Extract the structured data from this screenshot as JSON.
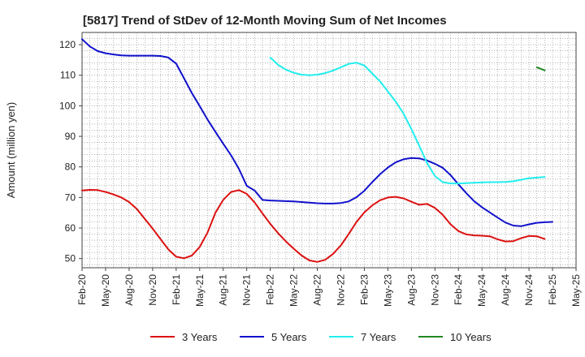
{
  "chart_data": {
    "type": "line",
    "title": "[5817]  Trend of StDev of 12-Month Moving Sum of Net Incomes",
    "ylabel": "Amount (million yen)",
    "xlabel": "",
    "ylim": [
      47,
      124
    ],
    "yticks": [
      50,
      60,
      70,
      80,
      90,
      100,
      110,
      120
    ],
    "x_tick_labels": [
      "Feb-20",
      "May-20",
      "Aug-20",
      "Nov-20",
      "Feb-21",
      "May-21",
      "Aug-21",
      "Nov-21",
      "Feb-22",
      "May-22",
      "Aug-22",
      "Nov-22",
      "Feb-23",
      "May-23",
      "Aug-23",
      "Nov-23",
      "Feb-24",
      "May-24",
      "Aug-24",
      "Nov-24",
      "Feb-25",
      "May-25"
    ],
    "grid": true,
    "legend_position": "bottom",
    "series": [
      {
        "name": "3 Years",
        "color": "#dd1111",
        "start_index": 0,
        "values": [
          72.3,
          72.5,
          72.4,
          71.8,
          71.0,
          70.0,
          68.5,
          66.2,
          63.0,
          59.8,
          56.4,
          53.0,
          50.6,
          50.1,
          51.0,
          53.8,
          58.5,
          65.0,
          69.2,
          71.8,
          72.4,
          71.2,
          68.4,
          64.8,
          61.4,
          58.3,
          55.6,
          53.2,
          51.0,
          49.4,
          48.9,
          49.6,
          51.5,
          54.3,
          58.0,
          62.0,
          65.1,
          67.4,
          69.1,
          70.0,
          70.2,
          69.7,
          68.6,
          67.6,
          67.9,
          66.6,
          64.3,
          61.2,
          59.0,
          57.9,
          57.6,
          57.5,
          57.3,
          56.3,
          55.6,
          55.7,
          56.7,
          57.4,
          57.3,
          56.4
        ]
      },
      {
        "name": "5 Years",
        "color": "#1111cc",
        "start_index": 0,
        "values": [
          121.8,
          119.4,
          117.9,
          117.2,
          116.8,
          116.5,
          116.4,
          116.4,
          116.4,
          116.4,
          116.3,
          115.8,
          113.8,
          109.0,
          104.2,
          99.9,
          95.5,
          91.5,
          87.6,
          83.8,
          79.4,
          73.8,
          72.3,
          69.2,
          69.0,
          68.9,
          68.8,
          68.7,
          68.5,
          68.3,
          68.1,
          68.0,
          68.0,
          68.2,
          68.7,
          70.1,
          72.2,
          75.0,
          77.6,
          79.8,
          81.5,
          82.5,
          82.9,
          82.8,
          82.1,
          81.0,
          79.7,
          77.3,
          74.3,
          71.4,
          68.8,
          66.8,
          65.1,
          63.4,
          61.8,
          60.8,
          60.6,
          61.2,
          61.7,
          61.9,
          62.0
        ]
      },
      {
        "name": "7 Years",
        "color": "#22eeee",
        "start_index": 24,
        "values": [
          115.8,
          113.4,
          111.8,
          110.8,
          110.2,
          110.0,
          110.2,
          110.7,
          111.5,
          112.6,
          113.7,
          114.1,
          113.2,
          110.6,
          108.0,
          104.7,
          101.4,
          97.4,
          92.4,
          86.9,
          81.3,
          77.0,
          75.0,
          74.6,
          74.6,
          74.7,
          74.8,
          74.9,
          75.0,
          75.0,
          75.1,
          75.3,
          75.8,
          76.3,
          76.5,
          76.7
        ]
      },
      {
        "name": "10 Years",
        "color": "#228822",
        "start_index": 58,
        "values": [
          112.6,
          111.6
        ]
      }
    ]
  }
}
